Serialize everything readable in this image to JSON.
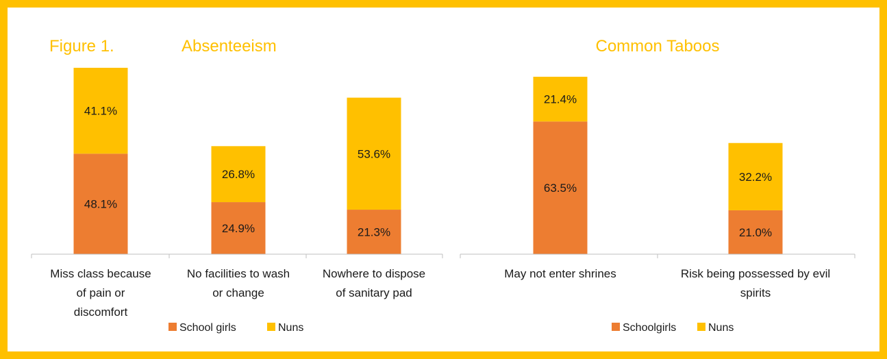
{
  "colors": {
    "school": "#ED7D31",
    "nuns": "#FFC000",
    "border": "#FFC000"
  },
  "chart_data": [
    {
      "type": "bar",
      "stacked": true,
      "figure_label": "Figure 1.",
      "title": "Absenteeism",
      "categories": [
        [
          "Miss class because",
          "of pain or",
          "discomfort"
        ],
        [
          "No facilities to wash",
          "or change"
        ],
        [
          "Nowhere to dispose",
          "of sanitary pad"
        ]
      ],
      "series": [
        {
          "name": "School girls",
          "values": [
            48.1,
            24.9,
            21.3
          ],
          "labels": [
            "48.1%",
            "24.9%",
            "21.3%"
          ]
        },
        {
          "name": "Nuns",
          "values": [
            41.1,
            26.8,
            53.6
          ],
          "labels": [
            "41.1%",
            "26.8%",
            "53.6%"
          ]
        }
      ],
      "legend": "bottom",
      "grid": false
    },
    {
      "type": "bar",
      "stacked": true,
      "title": "Common Taboos",
      "categories": [
        [
          "May not enter shrines"
        ],
        [
          "Risk being possessed by evil",
          "spirits"
        ]
      ],
      "series": [
        {
          "name": "Schoolgirls",
          "values": [
            63.5,
            21.0
          ],
          "labels": [
            "63.5%",
            "21.0%"
          ]
        },
        {
          "name": "Nuns",
          "values": [
            21.4,
            32.2
          ],
          "labels": [
            "21.4%",
            "32.2%"
          ]
        }
      ],
      "legend": "bottom",
      "grid": false
    }
  ]
}
